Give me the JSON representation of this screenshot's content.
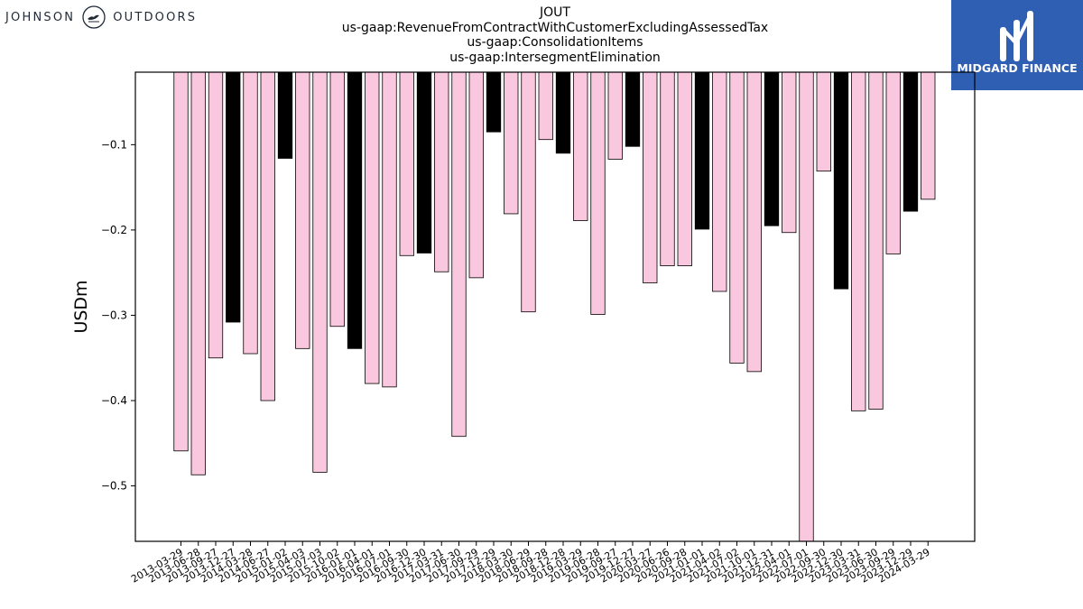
{
  "header": {
    "company_left": "JOHNSON",
    "company_right": "OUTDOORS",
    "brand_name": "MIDGARD FINANCE",
    "title_lines": [
      "JOUT",
      "us-gaap:RevenueFromContractWithCustomerExcludingAssessedTax",
      "us-gaap:ConsolidationItems",
      "us-gaap:IntersegmentElimination"
    ]
  },
  "colors": {
    "fiscal_q4_bar": "#000000",
    "other_bar": "#f9c8de",
    "bar_edge": "#000000"
  },
  "chart_data": {
    "type": "bar",
    "ylabel": "USDm",
    "ylim": [
      -0.565,
      -0.015
    ],
    "yticks": [
      -0.1,
      -0.2,
      -0.3,
      -0.4,
      -0.5
    ],
    "grid": false,
    "categories": [
      "2013-03-29",
      "2013-06-28",
      "2013-09-27",
      "2013-12-27",
      "2014-03-28",
      "2014-06-27",
      "2015-01-02",
      "2015-04-03",
      "2015-07-03",
      "2015-10-02",
      "2016-01-01",
      "2016-04-01",
      "2016-07-01",
      "2016-09-30",
      "2016-12-30",
      "2017-03-31",
      "2017-06-30",
      "2017-09-29",
      "2017-12-29",
      "2018-03-30",
      "2018-06-29",
      "2018-09-28",
      "2018-12-28",
      "2019-03-29",
      "2019-06-28",
      "2019-09-27",
      "2019-12-27",
      "2020-03-27",
      "2020-06-26",
      "2020-09-28",
      "2021-01-01",
      "2021-04-02",
      "2021-07-02",
      "2021-10-01",
      "2021-12-31",
      "2022-04-01",
      "2022-07-01",
      "2022-09-30",
      "2022-12-30",
      "2023-03-31",
      "2023-06-30",
      "2023-09-29",
      "2023-12-29",
      "2024-03-29"
    ],
    "values": [
      -0.459,
      -0.487,
      -0.35,
      -0.308,
      -0.345,
      -0.4,
      -0.116,
      -0.339,
      -0.484,
      -0.313,
      -0.339,
      -0.38,
      -0.384,
      -0.23,
      -0.227,
      -0.249,
      -0.442,
      -0.256,
      -0.085,
      -0.181,
      -0.296,
      -0.094,
      -0.11,
      -0.189,
      -0.299,
      -0.117,
      -0.102,
      -0.262,
      -0.242,
      -0.242,
      -0.199,
      -0.272,
      -0.356,
      -0.366,
      -0.195,
      -0.203,
      -0.565,
      -0.131,
      -0.269,
      -0.412,
      -0.41,
      -0.228,
      -0.178,
      -0.164
    ],
    "highlight": [
      false,
      false,
      false,
      true,
      false,
      false,
      true,
      false,
      false,
      false,
      true,
      false,
      false,
      false,
      true,
      false,
      false,
      false,
      true,
      false,
      false,
      false,
      true,
      false,
      false,
      false,
      true,
      false,
      false,
      false,
      true,
      false,
      false,
      false,
      true,
      false,
      false,
      false,
      true,
      false,
      false,
      false,
      true,
      false
    ]
  }
}
